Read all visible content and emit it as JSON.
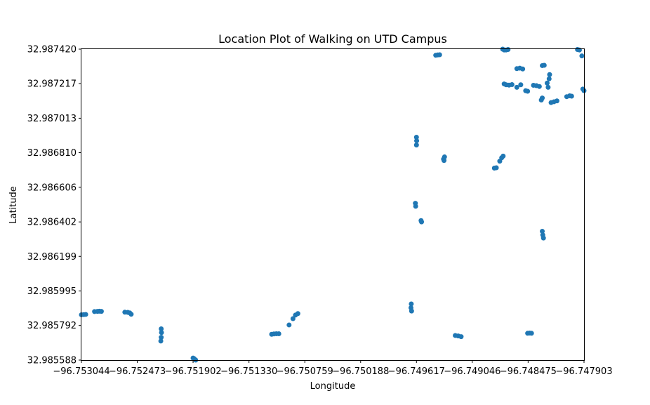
{
  "chart_data": {
    "type": "scatter",
    "title": "Location Plot of Walking on UTD Campus",
    "xlabel": "Longitude",
    "ylabel": "Latitude",
    "xlim": [
      -96.753044,
      -96.747903
    ],
    "ylim": [
      32.985588,
      32.98742
    ],
    "xticks": [
      -96.753044,
      -96.752473,
      -96.751902,
      -96.75133,
      -96.750759,
      -96.750188,
      -96.749617,
      -96.749046,
      -96.748475,
      -96.747903
    ],
    "xtick_labels": [
      "−96.753044",
      "−96.752473",
      "−96.751902",
      "−96.751330",
      "−96.750759",
      "−96.750188",
      "−96.749617",
      "−96.749046",
      "−96.748475",
      "−96.747903"
    ],
    "yticks": [
      32.98742,
      32.987217,
      32.987013,
      32.98681,
      32.986606,
      32.986402,
      32.986199,
      32.985995,
      32.985792,
      32.985588
    ],
    "ytick_labels": [
      "32.987420",
      "32.987217",
      "32.987013",
      "32.986810",
      "32.986606",
      "32.986402",
      "32.986199",
      "32.985995",
      "32.985792",
      "32.985588"
    ],
    "grid": false,
    "marker_color": "#1f77b4",
    "points": [
      [
        -96.75302,
        32.985856
      ],
      [
        -96.753044,
        32.985855
      ],
      [
        -96.753,
        32.985857
      ],
      [
        -96.75291,
        32.985874
      ],
      [
        -96.75288,
        32.985875
      ],
      [
        -96.75286,
        32.985876
      ],
      [
        -96.75284,
        32.985875
      ],
      [
        -96.7526,
        32.98587
      ],
      [
        -96.75257,
        32.985869
      ],
      [
        -96.75255,
        32.985866
      ],
      [
        -96.752535,
        32.985858
      ],
      [
        -96.752228,
        32.985772
      ],
      [
        -96.752225,
        32.98575
      ],
      [
        -96.752228,
        32.985722
      ],
      [
        -96.752232,
        32.9857
      ],
      [
        -96.751902,
        32.9856
      ],
      [
        -96.75189,
        32.985596
      ],
      [
        -96.751875,
        32.985588
      ],
      [
        -96.751098,
        32.98574
      ],
      [
        -96.751075,
        32.985742
      ],
      [
        -96.75105,
        32.985743
      ],
      [
        -96.751025,
        32.985743
      ],
      [
        -96.75092,
        32.985795
      ],
      [
        -96.75088,
        32.985832
      ],
      [
        -96.750855,
        32.985853
      ],
      [
        -96.75083,
        32.985862
      ],
      [
        -96.74967,
        32.985919
      ],
      [
        -96.749673,
        32.985896
      ],
      [
        -96.749667,
        32.985877
      ],
      [
        -96.749617,
        32.986901
      ],
      [
        -96.749615,
        32.98688
      ],
      [
        -96.749617,
        32.986855
      ],
      [
        -96.749628,
        32.986512
      ],
      [
        -96.749625,
        32.986494
      ],
      [
        -96.74957,
        32.98641
      ],
      [
        -96.749565,
        32.986402
      ],
      [
        -96.74942,
        32.987384
      ],
      [
        -96.7494,
        32.987386
      ],
      [
        -96.74938,
        32.987387
      ],
      [
        -96.74934,
        32.986772
      ],
      [
        -96.749335,
        32.986764
      ],
      [
        -96.74933,
        32.986785
      ],
      [
        -96.74922,
        32.985733
      ],
      [
        -96.74919,
        32.98573
      ],
      [
        -96.74916,
        32.985726
      ],
      [
        -96.74882,
        32.986719
      ],
      [
        -96.7488,
        32.986721
      ],
      [
        -96.748765,
        32.98676
      ],
      [
        -96.748745,
        32.98678
      ],
      [
        -96.74873,
        32.98679
      ],
      [
        -96.748735,
        32.98742
      ],
      [
        -96.74872,
        32.987415
      ],
      [
        -96.7487,
        32.987415
      ],
      [
        -96.74868,
        32.987418
      ],
      [
        -96.74872,
        32.987215
      ],
      [
        -96.7487,
        32.98721
      ],
      [
        -96.74867,
        32.987208
      ],
      [
        -96.74864,
        32.987211
      ],
      [
        -96.74859,
        32.987305
      ],
      [
        -96.74856,
        32.987308
      ],
      [
        -96.74853,
        32.987303
      ],
      [
        -96.74859,
        32.987195
      ],
      [
        -96.74855,
        32.98721
      ],
      [
        -96.7485,
        32.987175
      ],
      [
        -96.74848,
        32.987172
      ],
      [
        -96.74848,
        32.985746
      ],
      [
        -96.74846,
        32.985747
      ],
      [
        -96.74844,
        32.985746
      ],
      [
        -96.74842,
        32.987207
      ],
      [
        -96.74839,
        32.987205
      ],
      [
        -96.74836,
        32.9872
      ],
      [
        -96.74833,
        32.987323
      ],
      [
        -96.74831,
        32.987325
      ],
      [
        -96.74834,
        32.98712
      ],
      [
        -96.74833,
        32.987132
      ],
      [
        -96.74833,
        32.986347
      ],
      [
        -96.748325,
        32.986325
      ],
      [
        -96.748318,
        32.986307
      ],
      [
        -96.74828,
        32.98722
      ],
      [
        -96.74826,
        32.987245
      ],
      [
        -96.748255,
        32.98727
      ],
      [
        -96.74827,
        32.987195
      ],
      [
        -96.74824,
        32.987105
      ],
      [
        -96.74821,
        32.98711
      ],
      [
        -96.74818,
        32.987115
      ],
      [
        -96.74808,
        32.98714
      ],
      [
        -96.74805,
        32.987145
      ],
      [
        -96.74803,
        32.987143
      ],
      [
        -96.74797,
        32.987418
      ],
      [
        -96.74795,
        32.987415
      ],
      [
        -96.747925,
        32.98738
      ],
      [
        -96.747903,
        32.987175
      ],
      [
        -96.747915,
        32.987185
      ]
    ]
  }
}
